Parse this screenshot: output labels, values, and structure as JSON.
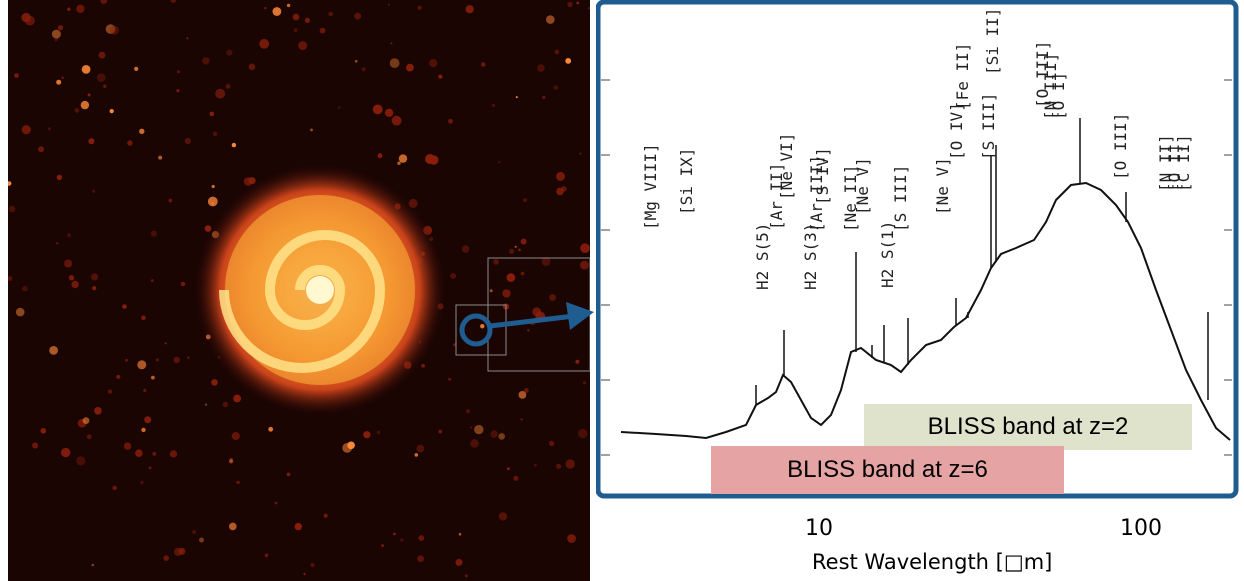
{
  "colors": {
    "galaxy_bg": "#1b0503",
    "galaxy_core": "#ffe07a",
    "galaxy_mid": "#f07a1e",
    "frame_border": "#1f5d91",
    "arrow": "#1f5d91",
    "band_z2": "#dfe3cc",
    "band_z6": "#e6a3a3"
  },
  "galaxy_image": {
    "icon": "spiral-galaxy-image"
  },
  "spectrum": {
    "line_labels": [
      "[Mg VIII]",
      "[Si IX]",
      "H2 S(5)",
      "[Ar II]",
      "[Ne VI]",
      "H2 S(3)",
      "[Ar III]",
      "[S IV]",
      "[Ne II]",
      "[Ne V]",
      "H2 S(1)",
      "[S III]",
      "[Ne V]",
      "[O IV]",
      "[Fe II]",
      "[S III]",
      "[Si II]",
      "[O III]",
      "[N III]",
      "[O I]",
      "[O III]",
      "[N II]",
      "[O I]",
      "[C II]"
    ],
    "x_ticks": [
      "10",
      "100"
    ],
    "x_label": "Rest Wavelength [□m]",
    "bands": {
      "z2": "BLISS band at z=2",
      "z6": "BLISS band at z=6"
    }
  }
}
